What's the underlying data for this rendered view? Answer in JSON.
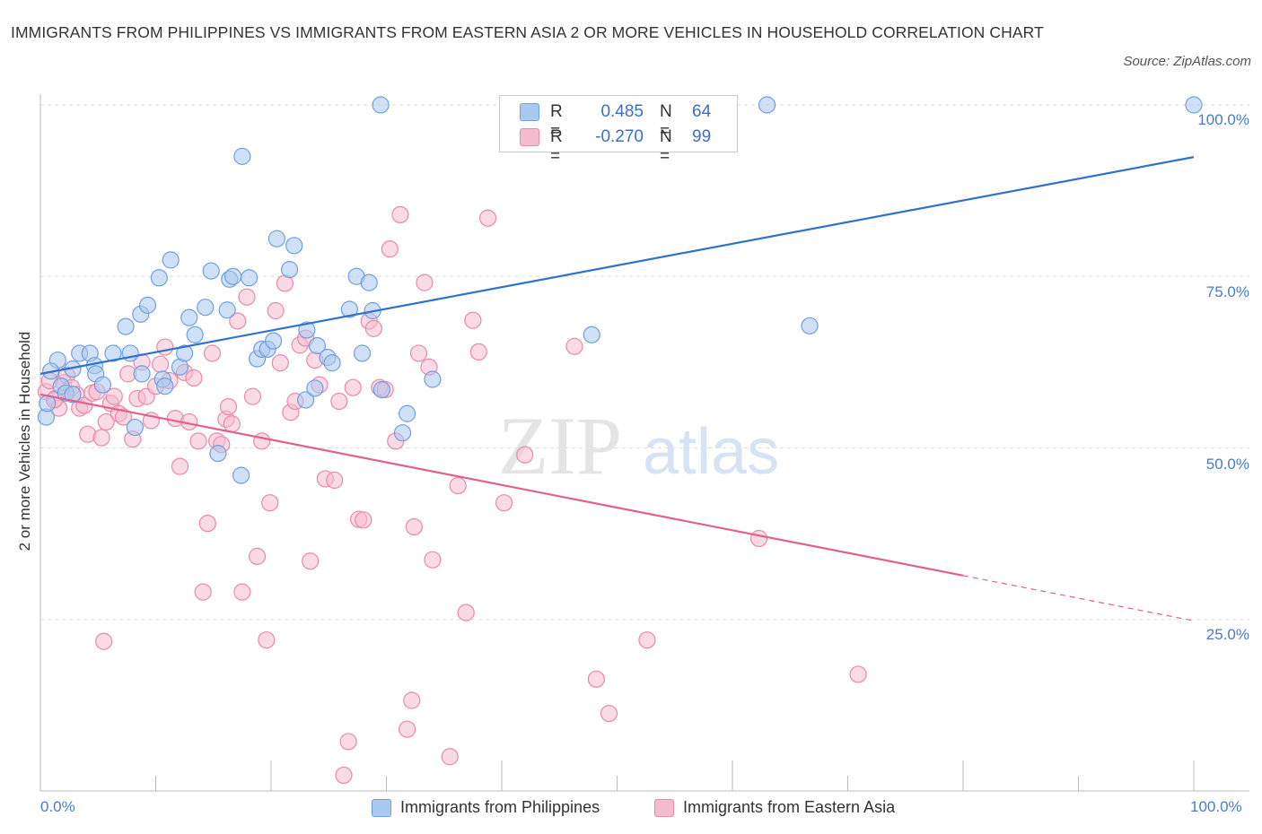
{
  "header": {
    "title": "IMMIGRANTS FROM PHILIPPINES VS IMMIGRANTS FROM EASTERN ASIA 2 OR MORE VEHICLES IN HOUSEHOLD CORRELATION CHART",
    "source": "Source: ZipAtlas.com"
  },
  "watermark": {
    "zip": "ZIP",
    "atlas": "atlas"
  },
  "legend": {
    "rows": [
      {
        "r_label": "R =",
        "r_value": "0.485",
        "n_label": "N =",
        "n_value": "64"
      },
      {
        "r_label": "R =",
        "r_value": "-0.270",
        "n_label": "N =",
        "n_value": "99"
      }
    ]
  },
  "axes": {
    "ylabel": "2 or more Vehicles in Household",
    "y_ticks": [
      "100.0%",
      "75.0%",
      "50.0%",
      "25.0%"
    ],
    "x_tick_left": "0.0%",
    "x_tick_right": "100.0%"
  },
  "bottom_legend": [
    "Immigrants from Philippines",
    "Immigrants from Eastern Asia"
  ],
  "colors": {
    "blue_fill": "#aac8f0",
    "blue_stroke": "#6f9fe0",
    "blue_line": "#2f72cc",
    "pink_fill": "#f5bcd0",
    "pink_stroke": "#e88aaa",
    "pink_line": "#e0608e",
    "tick_text": "#4a7cc4",
    "grid": "#dddddd"
  },
  "chart_data": {
    "type": "scatter",
    "xlim": [
      0,
      100
    ],
    "ylim": [
      0,
      100
    ],
    "grid": true,
    "series": [
      {
        "name": "Immigrants from Philippines",
        "color": "#6f9fe0",
        "trend": {
          "x": [
            0,
            100
          ],
          "y": [
            60.8,
            92.4
          ]
        },
        "points": [
          [
            0.5,
            54.5
          ],
          [
            0.6,
            56.5
          ],
          [
            1.5,
            62.8
          ],
          [
            1.8,
            59
          ],
          [
            2.2,
            58
          ],
          [
            2.8,
            57.8
          ],
          [
            3.4,
            63.8
          ],
          [
            4.3,
            63.8
          ],
          [
            4.7,
            62
          ],
          [
            4.8,
            60.8
          ],
          [
            5.4,
            59.2
          ],
          [
            6.3,
            63.8
          ],
          [
            7.4,
            67.7
          ],
          [
            7.8,
            63.8
          ],
          [
            8.2,
            53
          ],
          [
            8.8,
            60.8
          ],
          [
            8.7,
            69.5
          ],
          [
            9.3,
            70.8
          ],
          [
            10.6,
            60
          ],
          [
            10.8,
            59
          ],
          [
            10.3,
            74.8
          ],
          [
            11.3,
            77.4
          ],
          [
            12.1,
            61.8
          ],
          [
            12.5,
            63.8
          ],
          [
            12.9,
            69
          ],
          [
            13.4,
            66.5
          ],
          [
            14.3,
            70.5
          ],
          [
            14.8,
            75.8
          ],
          [
            15.4,
            49.2
          ],
          [
            16.2,
            70.1
          ],
          [
            16.4,
            74.6
          ],
          [
            16.7,
            75
          ],
          [
            17.4,
            46
          ],
          [
            17.5,
            92.5
          ],
          [
            18.1,
            74.8
          ],
          [
            18.8,
            63
          ],
          [
            19.2,
            64.4
          ],
          [
            19.7,
            64.4
          ],
          [
            20.2,
            65.6
          ],
          [
            20.5,
            80.5
          ],
          [
            21.6,
            76
          ],
          [
            22.0,
            79.5
          ],
          [
            23.0,
            57
          ],
          [
            23.1,
            67.2
          ],
          [
            24.0,
            64.9
          ],
          [
            23.8,
            58.7
          ],
          [
            24.9,
            63.2
          ],
          [
            25.3,
            62.4
          ],
          [
            26.8,
            70.2
          ],
          [
            27.4,
            75
          ],
          [
            27.9,
            63.8
          ],
          [
            28.5,
            74.1
          ],
          [
            28.8,
            70
          ],
          [
            29.6,
            58.5
          ],
          [
            31.4,
            52.2
          ],
          [
            31.8,
            55
          ],
          [
            34.0,
            60
          ],
          [
            29.5,
            100
          ],
          [
            47.8,
            66.5
          ],
          [
            66.7,
            67.8
          ],
          [
            63.0,
            100
          ],
          [
            100,
            100
          ],
          [
            0.9,
            61.2
          ],
          [
            2.8,
            61.5
          ]
        ]
      },
      {
        "name": "Immigrants from Eastern Asia",
        "color": "#e88aaa",
        "trend": {
          "x": [
            0,
            100
          ],
          "y": [
            57.8,
            24.8
          ]
        },
        "points": [
          [
            0.5,
            58.2
          ],
          [
            0.8,
            59.8
          ],
          [
            1.3,
            57.2
          ],
          [
            1.6,
            55.8
          ],
          [
            2.0,
            59.5
          ],
          [
            2.3,
            60.6
          ],
          [
            2.7,
            58.8
          ],
          [
            3.1,
            57.8
          ],
          [
            3.4,
            55.8
          ],
          [
            3.8,
            56.2
          ],
          [
            4.1,
            52
          ],
          [
            4.5,
            58
          ],
          [
            4.9,
            58.2
          ],
          [
            5.3,
            51.5
          ],
          [
            5.7,
            53.8
          ],
          [
            6.1,
            56.5
          ],
          [
            6.4,
            57.5
          ],
          [
            6.8,
            55
          ],
          [
            7.2,
            54.5
          ],
          [
            7.6,
            60.8
          ],
          [
            8.0,
            51.3
          ],
          [
            8.4,
            57.2
          ],
          [
            8.8,
            62.5
          ],
          [
            9.2,
            57.5
          ],
          [
            9.6,
            54
          ],
          [
            10.0,
            59
          ],
          [
            10.4,
            62.2
          ],
          [
            10.8,
            64.7
          ],
          [
            11.2,
            59.8
          ],
          [
            11.7,
            54.3
          ],
          [
            12.1,
            47.3
          ],
          [
            12.5,
            61
          ],
          [
            12.9,
            53.8
          ],
          [
            13.3,
            60.2
          ],
          [
            13.7,
            51
          ],
          [
            14.1,
            29
          ],
          [
            14.5,
            39
          ],
          [
            14.9,
            63.8
          ],
          [
            15.3,
            51
          ],
          [
            15.7,
            50.5
          ],
          [
            16.1,
            54.2
          ],
          [
            16.3,
            56
          ],
          [
            16.6,
            53.5
          ],
          [
            17.1,
            68.5
          ],
          [
            17.5,
            29
          ],
          [
            17.9,
            72
          ],
          [
            18.4,
            57.5
          ],
          [
            18.8,
            34.2
          ],
          [
            19.2,
            51
          ],
          [
            19.6,
            22
          ],
          [
            19.9,
            42
          ],
          [
            20.4,
            70
          ],
          [
            20.8,
            62.4
          ],
          [
            21.2,
            74
          ],
          [
            21.7,
            55.2
          ],
          [
            22.1,
            56.8
          ],
          [
            22.5,
            65
          ],
          [
            23.0,
            66
          ],
          [
            23.4,
            33.5
          ],
          [
            23.8,
            62.8
          ],
          [
            24.2,
            59.2
          ],
          [
            24.7,
            45.5
          ],
          [
            25.5,
            45.3
          ],
          [
            25.9,
            56.8
          ],
          [
            26.3,
            2.3
          ],
          [
            26.7,
            7.2
          ],
          [
            27.1,
            58.8
          ],
          [
            27.6,
            39.6
          ],
          [
            28.0,
            39.5
          ],
          [
            28.5,
            68.5
          ],
          [
            28.9,
            67.4
          ],
          [
            29.4,
            58.8
          ],
          [
            29.9,
            58.5
          ],
          [
            30.3,
            79
          ],
          [
            30.8,
            51
          ],
          [
            31.2,
            84
          ],
          [
            31.8,
            9
          ],
          [
            32.2,
            13.2
          ],
          [
            32.4,
            38.5
          ],
          [
            32.8,
            63.8
          ],
          [
            33.3,
            74.1
          ],
          [
            33.7,
            61.8
          ],
          [
            34.0,
            33.7
          ],
          [
            35.5,
            5
          ],
          [
            36.2,
            44.5
          ],
          [
            36.9,
            26
          ],
          [
            37.5,
            68.6
          ],
          [
            38.0,
            64
          ],
          [
            38.8,
            83.5
          ],
          [
            40.2,
            42
          ],
          [
            42.0,
            49
          ],
          [
            46.3,
            64.8
          ],
          [
            48.2,
            16.3
          ],
          [
            49.3,
            11.3
          ],
          [
            52.6,
            22
          ],
          [
            62.3,
            36.8
          ],
          [
            70.9,
            17
          ],
          [
            5.5,
            21.8
          ],
          [
            1.2,
            57
          ]
        ]
      }
    ]
  }
}
